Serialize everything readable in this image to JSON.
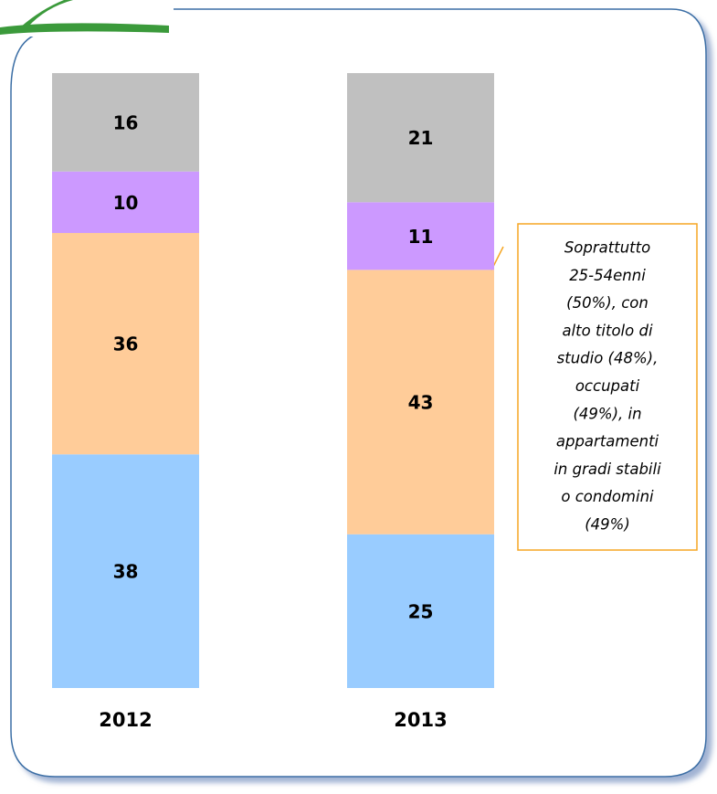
{
  "chart_data": {
    "type": "stacked_bar",
    "categories": [
      "2012",
      "2013"
    ],
    "series": [
      {
        "color": "#99ccff",
        "values": [
          38,
          25
        ]
      },
      {
        "color": "#ffcc99",
        "values": [
          36,
          43
        ]
      },
      {
        "color": "#cc99ff",
        "values": [
          10,
          11
        ]
      },
      {
        "color": "#c0c0c0",
        "values": [
          16,
          21
        ]
      }
    ],
    "ylim": [
      0,
      100
    ],
    "annotation": {
      "lines": [
        "Soprattutto",
        "25-54enni",
        "(50%), con",
        "alto titolo di",
        "studio (48%),",
        "occupati",
        "(49%), in",
        "appartamenti",
        "in gradi stabili",
        "o condomini",
        "(49%)"
      ],
      "color": "#f5a623"
    }
  }
}
